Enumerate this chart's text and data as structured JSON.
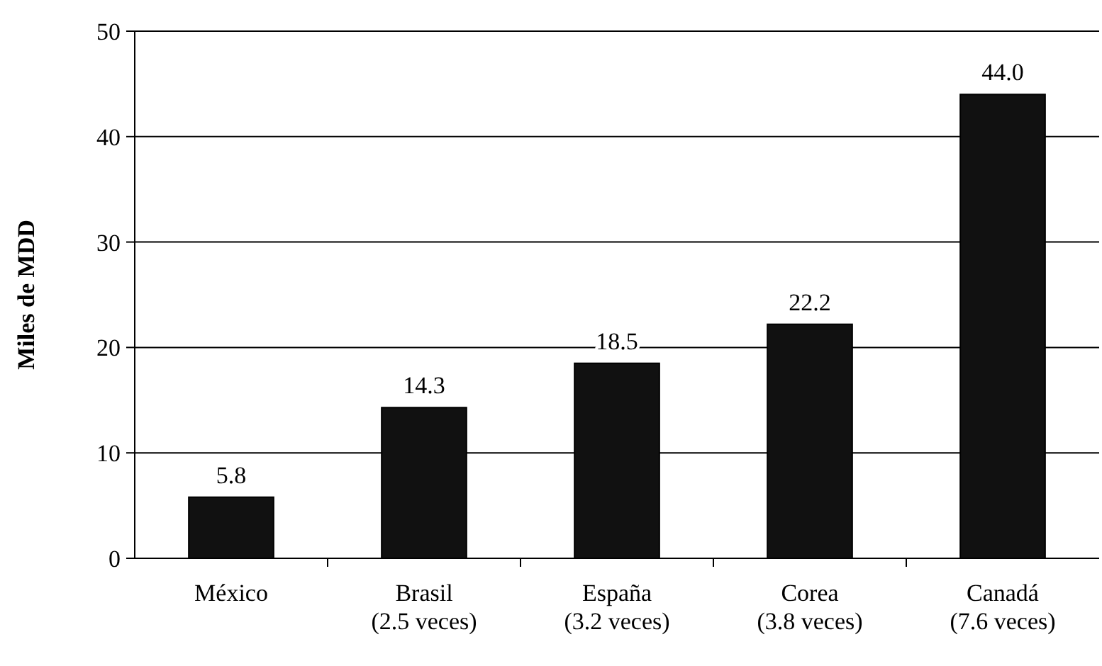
{
  "chart_data": {
    "type": "bar",
    "ylabel": "Miles de MDD",
    "categories": [
      "México",
      "Brasil\n(2.5 veces)",
      "España\n(3.2 veces)",
      "Corea\n(3.8 veces)",
      "Canadá\n(7.6 veces)"
    ],
    "values": [
      5.8,
      14.3,
      18.5,
      22.2,
      44.0
    ],
    "value_labels": [
      "5.8",
      "14.3",
      "18.5",
      "22.2",
      "44.0"
    ],
    "color": "#111111",
    "ylim": [
      0,
      50
    ],
    "yticks": [
      0,
      10,
      20,
      30,
      40,
      50
    ],
    "grid": "y"
  }
}
